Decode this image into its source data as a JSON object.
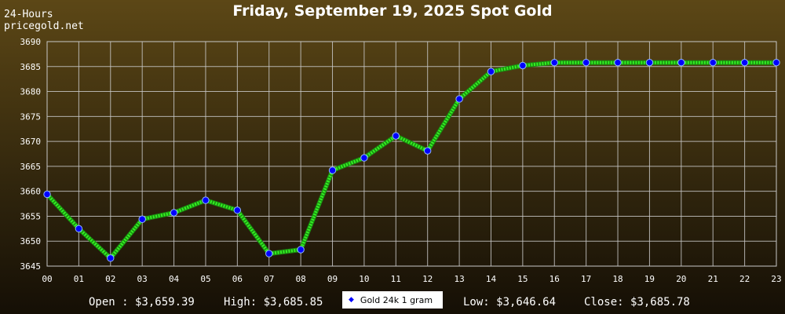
{
  "header": {
    "range_label": "24-Hours",
    "site_label": "pricegold.net",
    "title": "Friday, September 19, 2025 Spot Gold"
  },
  "stats": {
    "open": "Open : $3,659.39",
    "high": "High: $3,685.85",
    "low": "Low: $3,646.64",
    "close": "Close: $3,685.78"
  },
  "colors": {
    "line": "#33ee22",
    "marker": "#0000ff",
    "grid": "#c8c8c8",
    "text": "#ffffff"
  },
  "chart_data": {
    "type": "line",
    "title": "Friday, September 19, 2025 Spot Gold",
    "categories": [
      "00",
      "01",
      "02",
      "03",
      "04",
      "05",
      "06",
      "07",
      "08",
      "09",
      "10",
      "11",
      "12",
      "13",
      "14",
      "15",
      "16",
      "17",
      "18",
      "19",
      "20",
      "21",
      "22",
      "23"
    ],
    "series": [
      {
        "name": "Gold 24k 1 gram",
        "values": [
          3659.4,
          3652.5,
          3646.6,
          3654.4,
          3655.7,
          3658.2,
          3656.2,
          3647.5,
          3648.3,
          3664.2,
          3666.7,
          3671.1,
          3668.1,
          3678.5,
          3684.0,
          3685.2,
          3685.8,
          3685.8,
          3685.8,
          3685.8,
          3685.8,
          3685.8,
          3685.8,
          3685.8
        ]
      }
    ],
    "y_ticks": [
      "3645",
      "3650",
      "3655",
      "3660",
      "3665",
      "3670",
      "3675",
      "3680",
      "3685",
      "3690"
    ],
    "ylim": [
      3645,
      3690
    ],
    "grid": true,
    "legend": "bottom-center"
  }
}
